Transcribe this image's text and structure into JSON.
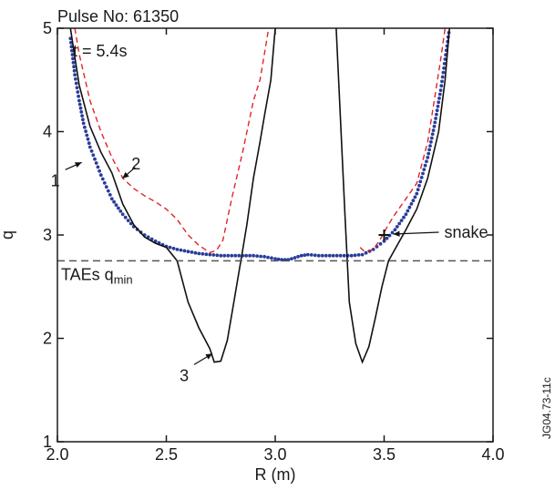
{
  "chart_data": {
    "type": "line",
    "title": "Pulse No: 61350",
    "subtitle": "t = 5.4s",
    "xlabel": "R (m)",
    "ylabel": "q",
    "xlim": [
      2.0,
      4.0
    ],
    "ylim": [
      1,
      5
    ],
    "xticks": [
      "2.0",
      "2.5",
      "3.0",
      "3.5",
      "4.0"
    ],
    "yticks": [
      "1",
      "2",
      "3",
      "4",
      "5"
    ],
    "grid": false,
    "series": [
      {
        "name": "1",
        "style": "dotted",
        "color": "#2a3d9a",
        "x": [
          2.06,
          2.08,
          2.1,
          2.12,
          2.15,
          2.2,
          2.25,
          2.3,
          2.35,
          2.4,
          2.45,
          2.5,
          2.55,
          2.6,
          2.65,
          2.7,
          2.75,
          2.8,
          2.85,
          2.9,
          2.95,
          3.0,
          3.03,
          3.06,
          3.09,
          3.12,
          3.15,
          3.2,
          3.25,
          3.3,
          3.35,
          3.4,
          3.45,
          3.5,
          3.55,
          3.6,
          3.65,
          3.7,
          3.73,
          3.76,
          3.78,
          3.8
        ],
        "y": [
          4.9,
          4.55,
          4.3,
          4.08,
          3.85,
          3.58,
          3.35,
          3.2,
          3.08,
          3.0,
          2.94,
          2.89,
          2.86,
          2.84,
          2.82,
          2.81,
          2.8,
          2.8,
          2.8,
          2.8,
          2.79,
          2.77,
          2.76,
          2.76,
          2.78,
          2.8,
          2.81,
          2.8,
          2.8,
          2.8,
          2.8,
          2.81,
          2.86,
          2.94,
          3.05,
          3.2,
          3.4,
          3.75,
          4.05,
          4.4,
          4.7,
          5.0
        ]
      },
      {
        "name": "2",
        "style": "dashed",
        "color": "#e0242a",
        "x": [
          2.08,
          2.1,
          2.15,
          2.2,
          2.25,
          2.3,
          2.35,
          2.4,
          2.45,
          2.5,
          2.55,
          2.6,
          2.65,
          2.7,
          2.73,
          2.76,
          2.8,
          2.85,
          2.9,
          2.93,
          2.95,
          2.97,
          null,
          3.39,
          3.41,
          3.45,
          3.48,
          3.52,
          3.55,
          3.6,
          3.65,
          3.7,
          3.73,
          3.76,
          3.78
        ],
        "y": [
          5.0,
          4.75,
          4.3,
          4.0,
          3.75,
          3.55,
          3.45,
          3.38,
          3.32,
          3.25,
          3.15,
          3.0,
          2.9,
          2.83,
          2.85,
          2.95,
          3.35,
          3.8,
          4.3,
          4.5,
          4.75,
          5.0,
          null,
          2.88,
          2.84,
          2.86,
          2.95,
          3.1,
          3.2,
          3.35,
          3.5,
          3.9,
          4.3,
          4.7,
          5.0
        ]
      },
      {
        "name": "3",
        "style": "solid",
        "color": "#111111",
        "x": [
          2.06,
          2.08,
          2.1,
          2.15,
          2.2,
          2.25,
          2.3,
          2.35,
          2.4,
          2.45,
          2.5,
          2.55,
          2.6,
          2.65,
          2.7,
          2.72,
          2.75,
          2.78,
          2.81,
          2.85,
          2.87,
          2.9,
          2.93,
          2.95,
          2.98,
          3.0,
          null,
          3.28,
          3.3,
          3.32,
          3.34,
          3.37,
          3.4,
          3.43,
          3.46,
          3.49,
          3.52,
          3.56,
          3.6,
          3.65,
          3.7,
          3.75,
          3.78,
          3.8
        ],
        "y": [
          5.0,
          4.72,
          4.45,
          4.05,
          3.8,
          3.6,
          3.3,
          3.1,
          2.98,
          2.92,
          2.88,
          2.75,
          2.35,
          2.1,
          1.9,
          1.77,
          1.78,
          1.98,
          2.35,
          2.85,
          3.1,
          3.55,
          3.9,
          4.15,
          4.5,
          5.0,
          null,
          5.0,
          4.1,
          3.2,
          2.35,
          1.95,
          1.77,
          1.92,
          2.2,
          2.5,
          2.75,
          2.9,
          3.05,
          3.25,
          3.55,
          4.0,
          4.5,
          5.0
        ]
      }
    ],
    "reference_line": {
      "label": "TAEs q",
      "subscript": "min",
      "y": 2.75,
      "style": "dashed",
      "color": "#555555"
    },
    "annotations": [
      {
        "text": "1",
        "arrow_to": [
          2.12,
          3.72
        ]
      },
      {
        "text": "2",
        "arrow_to": [
          2.29,
          3.53
        ]
      },
      {
        "text": "3",
        "arrow_to": [
          2.72,
          1.87
        ]
      },
      {
        "text": "snake",
        "marker": "+",
        "at": [
          3.5,
          3.0
        ]
      }
    ],
    "watermark": "JG04.73-11c"
  }
}
